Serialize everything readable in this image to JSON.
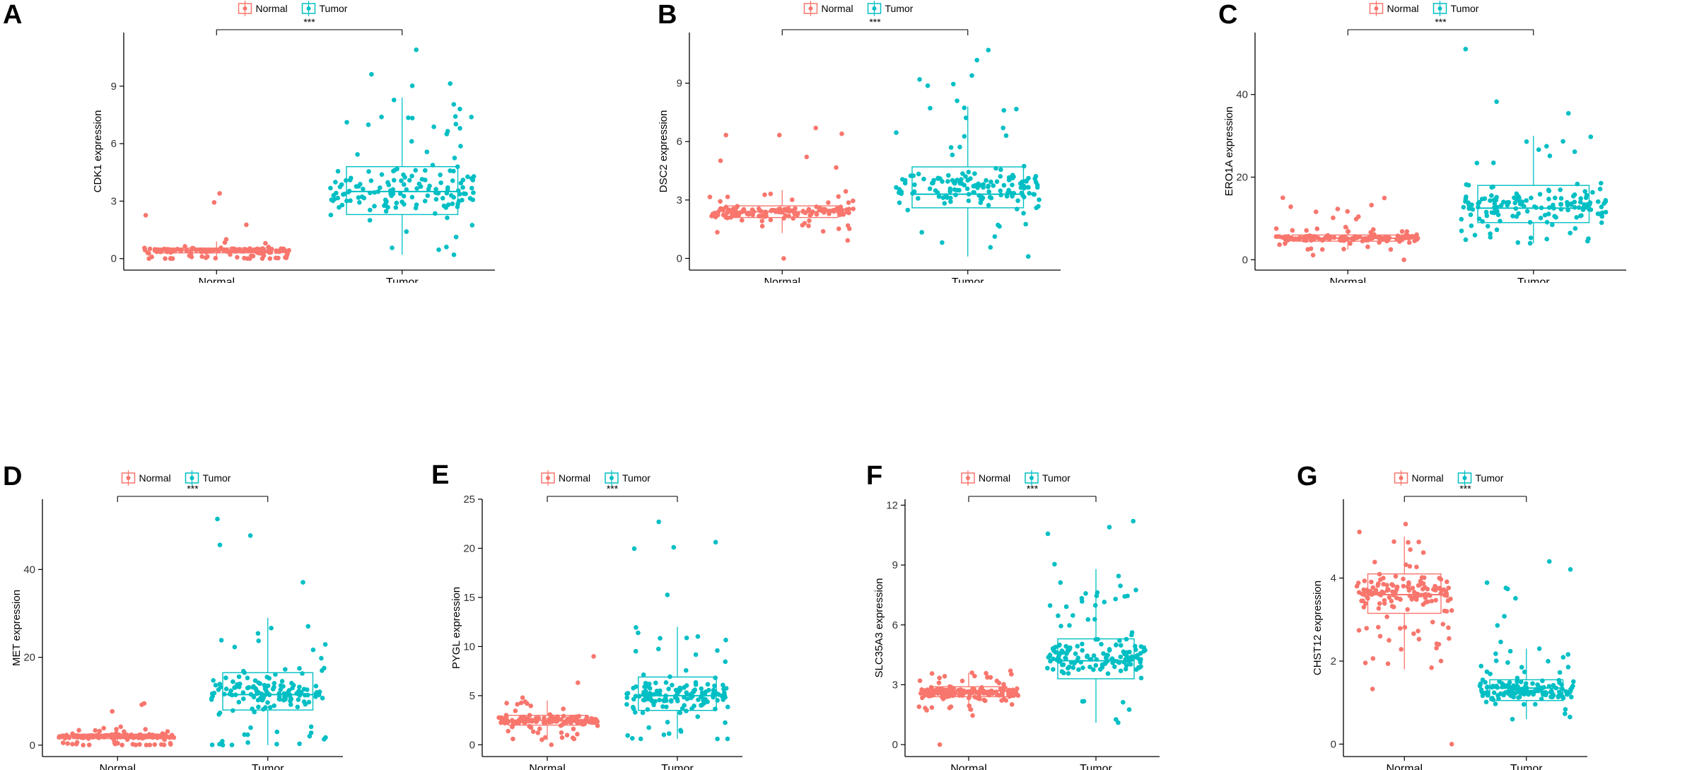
{
  "figure": {
    "colors": {
      "normal": "#F8766D",
      "tumor": "#00BFC4",
      "axis": "#000000",
      "tick": "#333333"
    },
    "legend_labels": [
      "Normal",
      "Tumor"
    ]
  },
  "chart_data": [
    {
      "panel": "A",
      "type": "box",
      "categories": [
        "Normal",
        "Tumor"
      ],
      "ylabel": "CDK1 expression",
      "xlabel": "",
      "ylim": [
        -0.6,
        11.8
      ],
      "yticks": [
        0,
        3,
        6,
        9
      ],
      "significance": "***",
      "series": [
        {
          "name": "Normal",
          "q1": 0.3,
          "median": 0.45,
          "q3": 0.55,
          "whisker_low": 0.0,
          "whisker_high": 0.9,
          "points_min": 0.0,
          "points_max": 3.4,
          "n": 160,
          "skew": 3.0
        },
        {
          "name": "Tumor",
          "q1": 2.3,
          "median": 3.5,
          "q3": 4.8,
          "whisker_low": 0.2,
          "whisker_high": 8.4,
          "points_min": 0.2,
          "points_max": 10.9,
          "n": 160,
          "skew": 1.0
        }
      ]
    },
    {
      "panel": "B",
      "type": "box",
      "categories": [
        "Normal",
        "Tumor"
      ],
      "ylabel": "DSC2 expression",
      "xlabel": "",
      "ylim": [
        -0.6,
        11.6
      ],
      "yticks": [
        0,
        3,
        6,
        9
      ],
      "significance": "***",
      "series": [
        {
          "name": "Normal",
          "q1": 2.1,
          "median": 2.4,
          "q3": 2.7,
          "whisker_low": 1.3,
          "whisker_high": 3.5,
          "points_min": 0.0,
          "points_max": 6.7,
          "n": 160,
          "skew": 1.0
        },
        {
          "name": "Tumor",
          "q1": 2.6,
          "median": 3.3,
          "q3": 4.7,
          "whisker_low": 0.1,
          "whisker_high": 7.8,
          "points_min": 0.1,
          "points_max": 10.7,
          "n": 160,
          "skew": 1.0
        }
      ]
    },
    {
      "panel": "C",
      "type": "box",
      "categories": [
        "Normal",
        "Tumor"
      ],
      "ylabel": "ERO1A expression",
      "xlabel": "",
      "ylim": [
        -2.5,
        55
      ],
      "yticks": [
        0,
        20,
        40
      ],
      "significance": "***",
      "series": [
        {
          "name": "Normal",
          "q1": 4.5,
          "median": 5.2,
          "q3": 6.0,
          "whisker_low": 2.5,
          "whisker_high": 8.0,
          "points_min": 0.0,
          "points_max": 15.0,
          "n": 160,
          "skew": 1.3
        },
        {
          "name": "Tumor",
          "q1": 9.0,
          "median": 12.5,
          "q3": 18.0,
          "whisker_low": 4.0,
          "whisker_high": 30.0,
          "points_min": 4.0,
          "points_max": 51.0,
          "n": 160,
          "skew": 2.0
        }
      ]
    },
    {
      "panel": "D",
      "type": "box",
      "categories": [
        "Normal",
        "Tumor"
      ],
      "ylabel": "MET expression",
      "xlabel": "",
      "ylim": [
        -2.6,
        56
      ],
      "yticks": [
        0,
        20,
        40
      ],
      "significance": "***",
      "series": [
        {
          "name": "Normal",
          "q1": 1.5,
          "median": 2.0,
          "q3": 2.5,
          "whisker_low": 0.0,
          "whisker_high": 4.0,
          "points_min": 0.0,
          "points_max": 9.5,
          "n": 160,
          "skew": 1.5
        },
        {
          "name": "Tumor",
          "q1": 8.0,
          "median": 11.5,
          "q3": 16.5,
          "whisker_low": 0.0,
          "whisker_high": 29.0,
          "points_min": 0.0,
          "points_max": 51.5,
          "n": 160,
          "skew": 1.8
        }
      ]
    },
    {
      "panel": "E",
      "type": "box",
      "categories": [
        "Normal",
        "Tumor"
      ],
      "ylabel": "PYGL expression",
      "xlabel": "",
      "ylim": [
        -1.2,
        25
      ],
      "yticks": [
        0,
        5,
        10,
        15,
        20,
        25
      ],
      "significance": "***",
      "series": [
        {
          "name": "Normal",
          "q1": 2.0,
          "median": 2.5,
          "q3": 3.0,
          "whisker_low": 0.5,
          "whisker_high": 4.5,
          "points_min": 0.0,
          "points_max": 9.0,
          "n": 160,
          "skew": 1.3
        },
        {
          "name": "Tumor",
          "q1": 3.5,
          "median": 5.0,
          "q3": 6.9,
          "whisker_low": 0.6,
          "whisker_high": 12.0,
          "points_min": 0.6,
          "points_max": 22.7,
          "n": 160,
          "skew": 1.5
        }
      ]
    },
    {
      "panel": "F",
      "type": "box",
      "categories": [
        "Normal",
        "Tumor"
      ],
      "ylabel": "SLC35A3 expression",
      "xlabel": "",
      "ylim": [
        -0.6,
        12.3
      ],
      "yticks": [
        0,
        3,
        6,
        9,
        12
      ],
      "significance": "***",
      "series": [
        {
          "name": "Normal",
          "q1": 2.4,
          "median": 2.7,
          "q3": 2.9,
          "whisker_low": 1.7,
          "whisker_high": 3.6,
          "points_min": 0.0,
          "points_max": 3.7,
          "n": 160,
          "skew": 1.0
        },
        {
          "name": "Tumor",
          "q1": 3.3,
          "median": 4.2,
          "q3": 5.3,
          "whisker_low": 1.1,
          "whisker_high": 8.8,
          "points_min": 1.1,
          "points_max": 11.2,
          "n": 160,
          "skew": 1.0
        }
      ]
    },
    {
      "panel": "G",
      "type": "box",
      "categories": [
        "Normal",
        "Tumor"
      ],
      "ylabel": "CHST12 expression",
      "xlabel": "",
      "ylim": [
        -0.3,
        5.9
      ],
      "yticks": [
        0,
        2,
        4
      ],
      "significance": "***",
      "series": [
        {
          "name": "Normal",
          "q1": 3.15,
          "median": 3.6,
          "q3": 4.1,
          "whisker_low": 1.8,
          "whisker_high": 5.0,
          "points_min": 0.0,
          "points_max": 5.3,
          "n": 160,
          "skew": 1.0
        },
        {
          "name": "Tumor",
          "q1": 1.05,
          "median": 1.35,
          "q3": 1.55,
          "whisker_low": 0.6,
          "whisker_high": 2.3,
          "points_min": 0.6,
          "points_max": 4.4,
          "n": 160,
          "skew": 1.0
        }
      ]
    }
  ]
}
